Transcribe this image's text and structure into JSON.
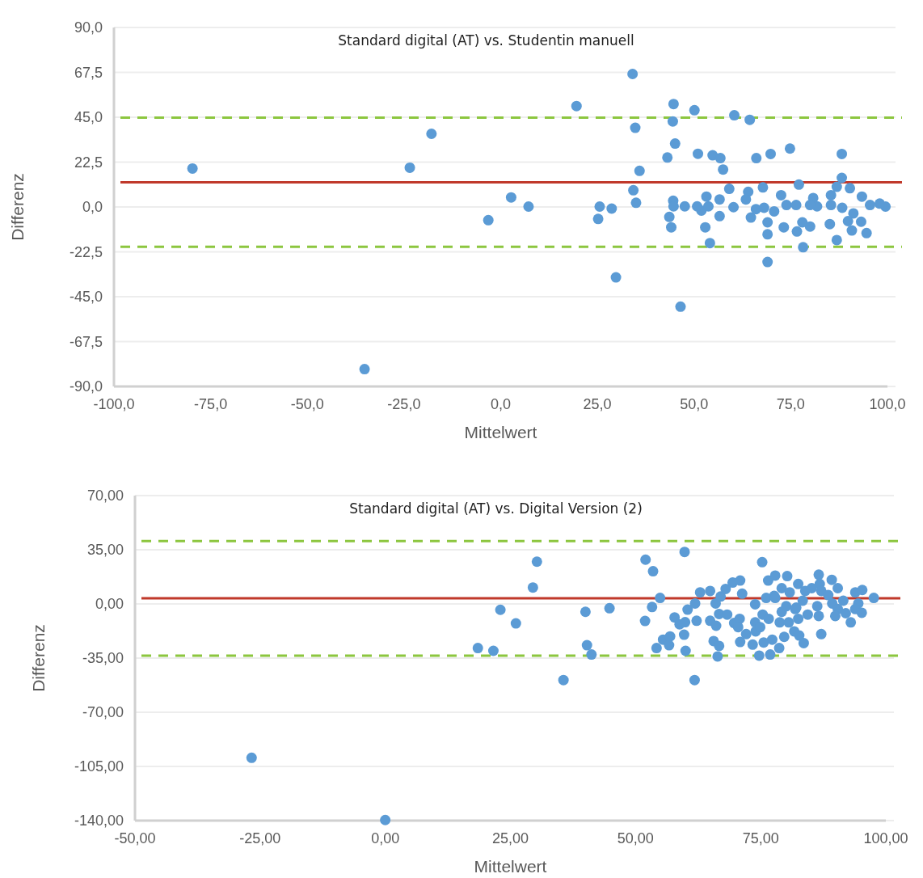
{
  "chart_data": [
    {
      "type": "scatter",
      "title": "Standard digital (AT) vs. Studentin manuell",
      "xlabel": "Mittelwert",
      "ylabel": "Differenz",
      "grid": "y",
      "marker": "circle",
      "xlim": [
        -100,
        100
      ],
      "ylim": [
        -90,
        90
      ],
      "xticks": [
        {
          "value": -100,
          "label": "-100,0"
        },
        {
          "value": -75,
          "label": "-75,0"
        },
        {
          "value": -50,
          "label": "-50,0"
        },
        {
          "value": -25,
          "label": "-25,0"
        },
        {
          "value": 0,
          "label": "0,0"
        },
        {
          "value": 25,
          "label": "25,0"
        },
        {
          "value": 50,
          "label": "50,0"
        },
        {
          "value": 75,
          "label": "75,0"
        },
        {
          "value": 100,
          "label": "100,0"
        }
      ],
      "yticks": [
        {
          "value": -90,
          "label": "-90,0"
        },
        {
          "value": -67.5,
          "label": "-67,5"
        },
        {
          "value": -45,
          "label": "-45,0"
        },
        {
          "value": -22.5,
          "label": "-22,5"
        },
        {
          "value": 0,
          "label": "0,0"
        },
        {
          "value": 22.5,
          "label": "22,5"
        },
        {
          "value": 45,
          "label": "45,0"
        },
        {
          "value": 67.5,
          "label": "67,5"
        },
        {
          "value": 90,
          "label": "90,0"
        }
      ],
      "ref_lines": [
        {
          "axis": "y",
          "value": 12.4,
          "color": "#c0392b",
          "line_style": "solid"
        },
        {
          "axis": "y",
          "value": 44.8,
          "color": "#8cc63f",
          "line_style": "dashed"
        },
        {
          "axis": "y",
          "value": -20,
          "color": "#8cc63f",
          "line_style": "dashed"
        }
      ],
      "series": [
        {
          "color": "#5b9bd5",
          "x": [
            -79.7,
            -23.5,
            -17.9,
            -35.2,
            -3.2,
            2.7,
            7.2,
            19.6,
            25.6,
            28.7,
            25.2,
            34.1,
            34.8,
            35.9,
            34.3,
            35.0,
            29.8,
            44.7,
            44.5,
            45.1,
            43.1,
            50.1,
            44.6,
            44.7,
            43.6,
            44.1,
            47.6,
            46.5,
            51.0,
            54.8,
            56.8,
            57.5,
            60.4,
            64.4,
            66.1,
            69.8,
            74.8,
            88.2,
            52.9,
            54.1,
            69.0,
            69.0,
            69.0,
            73.2,
            76.6,
            78.2,
            80.0,
            78.0,
            85.1,
            86.9,
            89.8,
            90.8,
            93.2,
            94.6,
            88.2,
            77.1,
            90.3,
            67.8,
            59.1,
            64.0,
            53.2,
            56.6,
            63.4,
            72.5,
            80.8,
            85.4,
            93.4,
            99.5,
            56.6,
            64.7,
            51.9,
            50.8,
            53.7,
            60.2,
            66.0,
            70.7,
            73.9,
            76.4,
            81.8,
            85.4,
            88.3,
            91.2,
            95.5,
            98.0,
            80.0,
            68.1,
            86.9
          ],
          "values": [
            19.3,
            19.7,
            36.7,
            -81.3,
            -6.6,
            4.8,
            0.2,
            50.6,
            0.2,
            -0.8,
            -6.0,
            66.7,
            39.7,
            18.1,
            8.4,
            2.1,
            -35.3,
            51.6,
            42.9,
            31.8,
            24.8,
            48.5,
            3.1,
            0.3,
            -5.0,
            -10.2,
            0.3,
            -50.0,
            26.7,
            25.9,
            24.5,
            18.8,
            46.0,
            43.7,
            24.5,
            26.6,
            29.3,
            26.6,
            -10.2,
            -18.1,
            -27.6,
            -13.7,
            -7.7,
            -10.2,
            -12.3,
            -20.2,
            -9.8,
            -7.7,
            -8.6,
            -16.6,
            -7.1,
            -11.8,
            -7.4,
            -13.1,
            14.6,
            11.2,
            9.4,
            9.8,
            9.1,
            7.6,
            5.2,
            3.8,
            3.8,
            5.9,
            4.5,
            5.9,
            5.2,
            0.2,
            -4.6,
            -5.3,
            -1.8,
            0.3,
            0.3,
            -0.1,
            -1.1,
            -2.2,
            1.0,
            1.0,
            0.3,
            1.0,
            -0.4,
            -3.2,
            1.0,
            1.7,
            1.0,
            -0.4,
            10.1
          ]
        }
      ]
    },
    {
      "type": "scatter",
      "title": "Standard digital (AT) vs. Digital Version (2)",
      "xlabel": "Mittelwert",
      "ylabel": "Differenz",
      "grid": "y",
      "marker": "circle",
      "xlim": [
        -50,
        100
      ],
      "ylim": [
        -140,
        70
      ],
      "xticks": [
        {
          "value": -50,
          "label": "-50,00"
        },
        {
          "value": -25,
          "label": "-25,00"
        },
        {
          "value": 0,
          "label": "0,00"
        },
        {
          "value": 25,
          "label": "25,00"
        },
        {
          "value": 50,
          "label": "50,00"
        },
        {
          "value": 75,
          "label": "75,00"
        },
        {
          "value": 100,
          "label": "100,00"
        }
      ],
      "yticks": [
        {
          "value": -140,
          "label": "-140,00"
        },
        {
          "value": -105,
          "label": "-105,00"
        },
        {
          "value": -70,
          "label": "-70,00"
        },
        {
          "value": -35,
          "label": "-35,00"
        },
        {
          "value": 0,
          "label": "0,00"
        },
        {
          "value": 35,
          "label": "35,00"
        },
        {
          "value": 70,
          "label": "70,00"
        }
      ],
      "ref_lines": [
        {
          "axis": "y",
          "value": 3.6,
          "color": "#c0392b",
          "line_style": "solid"
        },
        {
          "axis": "y",
          "value": 40.6,
          "color": "#8cc63f",
          "line_style": "dashed"
        },
        {
          "axis": "y",
          "value": -33.4,
          "color": "#8cc63f",
          "line_style": "dashed"
        }
      ],
      "series": [
        {
          "color": "#5b9bd5",
          "x": [
            -26.7,
            0.0,
            18.5,
            21.6,
            23.0,
            26.1,
            29.5,
            30.3,
            35.6,
            40.0,
            40.3,
            41.2,
            44.8,
            52.0,
            53.5,
            54.9,
            53.3,
            51.9,
            59.8,
            75.3,
            54.2,
            55.5,
            56.9,
            56.7,
            57.8,
            58.8,
            59.9,
            59.7,
            60.0,
            61.8,
            60.4,
            61.9,
            62.2,
            62.9,
            64.9,
            66.0,
            67.0,
            68.0,
            69.4,
            70.9,
            71.3,
            64.9,
            66.1,
            66.7,
            68.3,
            69.7,
            70.8,
            70.5,
            65.6,
            66.7,
            66.4,
            70.9,
            72.1,
            73.4,
            73.9,
            74.0,
            74.9,
            74.7,
            75.6,
            76.9,
            77.3,
            78.7,
            73.9,
            75.4,
            76.6,
            76.1,
            76.5,
            77.9,
            77.7,
            79.2,
            80.3,
            80.8,
            82.5,
            83.9,
            85.2,
            79.2,
            80.1,
            78.8,
            80.6,
            79.7,
            81.7,
            82.7,
            83.6,
            81.9,
            82.5,
            84.4,
            86.3,
            86.6,
            86.6,
            86.8,
            87.1,
            87.1,
            89.2,
            88.5,
            90.4,
            89.3,
            90.4,
            89.9,
            91.5,
            92.0,
            93.0,
            93.9,
            95.3,
            94.5,
            93.9,
            95.2,
            97.6,
            77.9,
            82.1,
            83.4
          ],
          "values": [
            -99.4,
            -139.6,
            -28.5,
            -30.3,
            -3.8,
            -12.6,
            10.6,
            27.3,
            -49.2,
            -5.1,
            -26.7,
            -32.7,
            -2.8,
            28.6,
            21.1,
            3.9,
            -2.0,
            -11.0,
            33.6,
            27.0,
            -28.5,
            -23.1,
            -21.0,
            -26.7,
            -8.7,
            -13.2,
            -11.8,
            -19.9,
            -30.3,
            -49.2,
            -3.7,
            0.3,
            -10.9,
            7.5,
            8.4,
            0.3,
            4.8,
            9.7,
            13.8,
            15.1,
            6.6,
            -10.9,
            -14.1,
            -6.5,
            -6.9,
            -12.3,
            -9.6,
            -15.0,
            -24.0,
            -27.1,
            -33.9,
            -24.6,
            -19.5,
            -26.3,
            -11.9,
            -17.7,
            -15.0,
            -33.4,
            -24.9,
            -32.7,
            -23.1,
            -28.5,
            -0.2,
            -6.9,
            -9.6,
            3.9,
            15.1,
            18.3,
            5.2,
            10.2,
            18.0,
            7.5,
            12.9,
            8.4,
            10.2,
            -5.1,
            -1.5,
            -11.9,
            -11.9,
            -21.3,
            -17.7,
            -20.4,
            -25.3,
            -3.3,
            -9.6,
            -6.9,
            -1.5,
            -7.8,
            18.9,
            12.9,
            -19.5,
            8.4,
            15.6,
            5.7,
            10.2,
            0.3,
            -3.3,
            -7.8,
            2.1,
            -6.0,
            -11.9,
            7.5,
            9.0,
            0.3,
            -3.3,
            -5.7,
            3.9,
            3.9,
            -2.4,
            2.1
          ]
        }
      ]
    }
  ]
}
